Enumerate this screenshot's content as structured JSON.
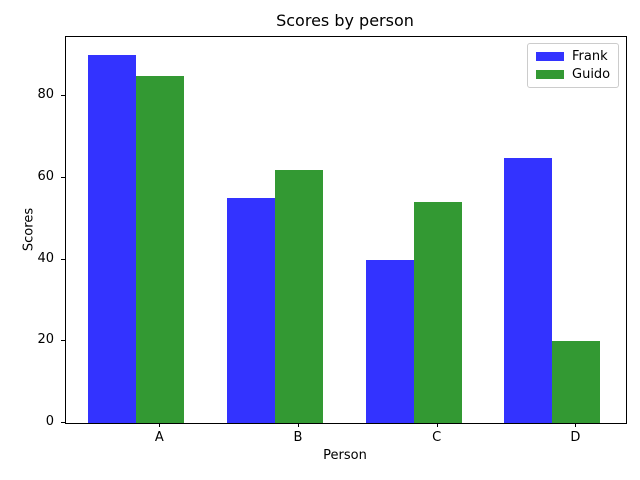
{
  "chart_data": {
    "type": "bar",
    "title": "Scores by person",
    "xlabel": "Person",
    "ylabel": "Scores",
    "categories": [
      "A",
      "B",
      "C",
      "D"
    ],
    "series": [
      {
        "name": "Frank",
        "color": "#3333ff",
        "values": [
          90,
          55,
          40,
          65
        ]
      },
      {
        "name": "Guido",
        "color": "#339933",
        "values": [
          85,
          62,
          54,
          20
        ]
      }
    ],
    "yticks": [
      0,
      20,
      40,
      60,
      80
    ],
    "ylim": [
      0,
      94.5
    ],
    "grid": false,
    "legend_position": "upper right",
    "background_color": "#ffffff",
    "axis_color": "#000000"
  }
}
